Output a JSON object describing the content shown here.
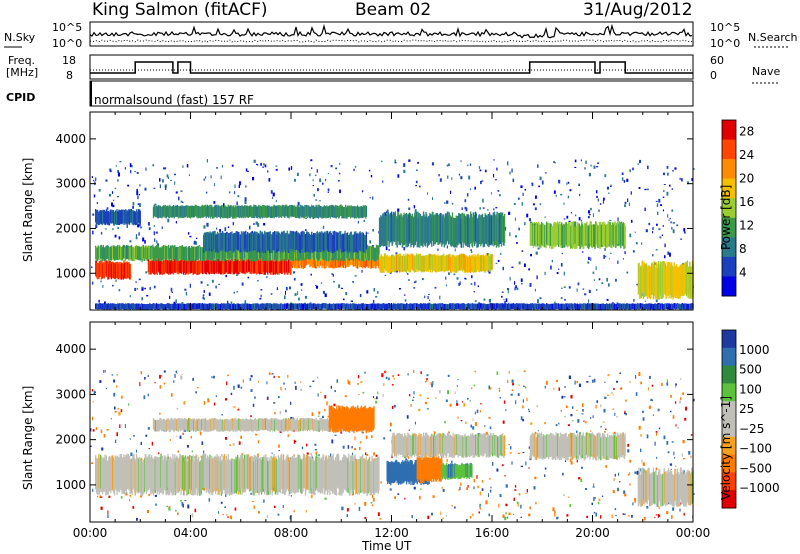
{
  "header": {
    "station": "King Salmon (fitACF)",
    "beam": "Beam 02",
    "date": "31/Aug/2012"
  },
  "top_panels": {
    "nsky_label": "N.Sky",
    "nsearch_label": "N.Search",
    "nsky_ticks": [
      "10^5",
      "10^0"
    ],
    "nsky_right_ticks": [
      "10^5",
      "10^0"
    ],
    "freq_label_line1": "Freq.",
    "freq_label_line2": "[MHz]",
    "freq_ticks": [
      "18",
      "8"
    ],
    "nave_label": "Nave",
    "nave_ticks": [
      "60",
      "0"
    ],
    "cpid_label": "CPID",
    "cpid_text": "normalsound (fast) 157 RF"
  },
  "colors": {
    "power_scale": [
      "#0000e6",
      "#1a3fbf",
      "#2a7a8a",
      "#3a9a4a",
      "#9acd32",
      "#f5c000",
      "#ff8c00",
      "#ff4500",
      "#e00000"
    ],
    "velocity_scale": [
      "#1e3a9e",
      "#2f6fb0",
      "#2f8a3c",
      "#5cc23c",
      "#c0c0b8",
      "#c0c0b8",
      "#f5a020",
      "#ff7a00",
      "#ff4000",
      "#e00000"
    ]
  },
  "chart_data": [
    {
      "type": "heatmap",
      "title": "",
      "xlabel": "Time UT",
      "ylabel": "Slant Range [km]",
      "x_ticks": [
        "00:00",
        "04:00",
        "08:00",
        "12:00",
        "16:00",
        "20:00",
        "00:00"
      ],
      "y_ticks": [
        1000,
        2000,
        3000,
        4000
      ],
      "xlim": [
        0,
        24
      ],
      "ylim": [
        180,
        4600
      ],
      "colorbar": {
        "label": "Power [dB]",
        "ticks": [
          "4",
          "8",
          "12",
          "16",
          "20",
          "24",
          "28"
        ],
        "range": [
          0,
          30
        ]
      },
      "bands": [
        {
          "t0": 0.2,
          "t1": 1.6,
          "r0": 900,
          "r1": 1250,
          "level": 26
        },
        {
          "t0": 2.3,
          "t1": 8.0,
          "r0": 1000,
          "r1": 1300,
          "level": 27
        },
        {
          "t0": 8.0,
          "t1": 11.5,
          "r0": 1150,
          "r1": 1550,
          "level": 22
        },
        {
          "t0": 0.2,
          "t1": 11.5,
          "r0": 1300,
          "r1": 1600,
          "level": 12
        },
        {
          "t0": 0.2,
          "t1": 2.0,
          "r0": 2100,
          "r1": 2400,
          "level": 6
        },
        {
          "t0": 2.5,
          "t1": 11.0,
          "r0": 2250,
          "r1": 2500,
          "level": 10
        },
        {
          "t0": 4.5,
          "t1": 11.0,
          "r0": 1500,
          "r1": 1900,
          "level": 7
        },
        {
          "t0": 11.5,
          "t1": 16.0,
          "r0": 1050,
          "r1": 1400,
          "level": 18
        },
        {
          "t0": 11.5,
          "t1": 16.5,
          "r0": 1650,
          "r1": 2300,
          "level": 9
        },
        {
          "t0": 17.5,
          "t1": 21.3,
          "r0": 1600,
          "r1": 2100,
          "level": 14
        },
        {
          "t0": 21.8,
          "t1": 24.0,
          "r0": 500,
          "r1": 1200,
          "level": 17
        },
        {
          "t0": 0.2,
          "t1": 24.0,
          "r0": 200,
          "r1": 320,
          "level": 5
        }
      ]
    },
    {
      "type": "heatmap",
      "title": "",
      "xlabel": "Time UT",
      "ylabel": "Slant Range [km]",
      "x_ticks": [
        "00:00",
        "04:00",
        "08:00",
        "12:00",
        "16:00",
        "20:00",
        "00:00"
      ],
      "y_ticks": [
        1000,
        2000,
        3000,
        4000
      ],
      "xlim": [
        0,
        24
      ],
      "ylim": [
        180,
        4600
      ],
      "colorbar": {
        "label": "Velocity [m s^-1]",
        "ticks": [
          "1000",
          "500",
          "100",
          "25",
          "−25",
          "−100",
          "−500",
          "−1000"
        ]
      },
      "bands": [
        {
          "t0": 0.2,
          "t1": 11.5,
          "r0": 850,
          "r1": 1600,
          "v": 0
        },
        {
          "t0": 2.5,
          "t1": 11.0,
          "r0": 2200,
          "r1": 2450,
          "v": 0
        },
        {
          "t0": 9.5,
          "t1": 11.3,
          "r0": 2200,
          "r1": 2700,
          "v": -150
        },
        {
          "t0": 11.8,
          "t1": 13.5,
          "r0": 1050,
          "r1": 1500,
          "v": 150
        },
        {
          "t0": 13.0,
          "t1": 14.0,
          "r0": 1100,
          "r1": 1600,
          "v": -150
        },
        {
          "t0": 14.0,
          "t1": 15.2,
          "r0": 1150,
          "r1": 1450,
          "v": 80
        },
        {
          "t0": 12.0,
          "t1": 16.5,
          "r0": 1650,
          "r1": 2100,
          "v": 0
        },
        {
          "t0": 17.5,
          "t1": 21.3,
          "r0": 1600,
          "r1": 2100,
          "v": 0
        },
        {
          "t0": 21.8,
          "t1": 24.0,
          "r0": 600,
          "r1": 1300,
          "v": 0
        }
      ]
    }
  ],
  "footer": {
    "x_ticks": [
      "00:00",
      "04:00",
      "08:00",
      "12:00",
      "16:00",
      "20:00",
      "00:00"
    ],
    "xlabel": "Time UT"
  }
}
